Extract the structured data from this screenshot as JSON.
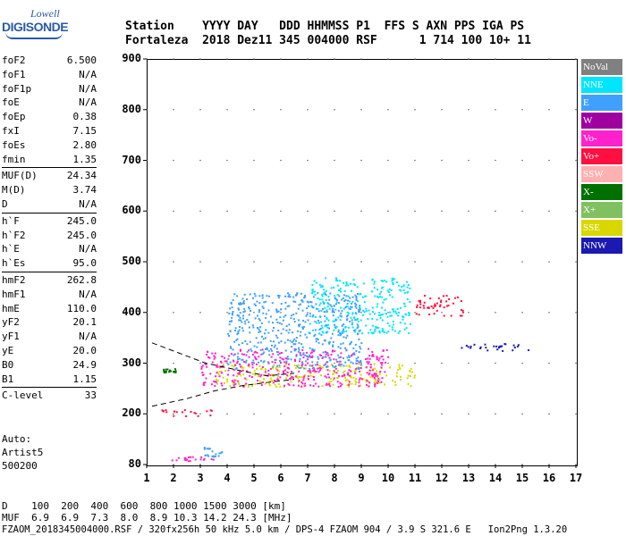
{
  "logo": {
    "line1": "Lowell",
    "line2": "DIGISONDE"
  },
  "header": {
    "row1": "Station    YYYY DAY   DDD HHMMSS P1  FFS S AXN PPS IGA PS",
    "row2": "Fortaleza  2018 Dez11 345 004000 RSF      1 714 100 10+ 11"
  },
  "params": [
    {
      "group": [
        {
          "k": "foF2",
          "v": "6.500"
        },
        {
          "k": "foF1",
          "v": "N/A"
        },
        {
          "k": "foF1p",
          "v": "N/A"
        },
        {
          "k": "foE",
          "v": "N/A"
        },
        {
          "k": "foEp",
          "v": "0.38"
        },
        {
          "k": "fxI",
          "v": "7.15"
        },
        {
          "k": "foEs",
          "v": "2.80"
        },
        {
          "k": "fmin",
          "v": "1.35"
        }
      ]
    },
    {
      "group": [
        {
          "k": "MUF(D)",
          "v": "24.34"
        },
        {
          "k": "M(D)",
          "v": "3.74"
        },
        {
          "k": "D",
          "v": "N/A"
        }
      ]
    },
    {
      "group": [
        {
          "k": "h`F",
          "v": "245.0"
        },
        {
          "k": "h`F2",
          "v": "245.0"
        },
        {
          "k": "h`E",
          "v": "N/A"
        },
        {
          "k": "h`Es",
          "v": "95.0"
        }
      ]
    },
    {
      "group": [
        {
          "k": "hmF2",
          "v": "262.8"
        },
        {
          "k": "hmF1",
          "v": "N/A"
        },
        {
          "k": "hmE",
          "v": "110.0"
        },
        {
          "k": "yF2",
          "v": "20.1"
        },
        {
          "k": "yF1",
          "v": "N/A"
        },
        {
          "k": "yE",
          "v": "20.0"
        },
        {
          "k": "B0",
          "v": "24.9"
        },
        {
          "k": "B1",
          "v": "1.15"
        }
      ]
    },
    {
      "group": [
        {
          "k": "C-level",
          "v": "33"
        }
      ]
    }
  ],
  "auto": {
    "l1": "Auto:",
    "l2": "Artist5",
    "l3": "500200"
  },
  "legend": [
    {
      "label": "NoVal",
      "color": "#808080"
    },
    {
      "label": "NNE",
      "color": "#00e5ff"
    },
    {
      "label": "E",
      "color": "#3fa0ff"
    },
    {
      "label": "W",
      "color": "#a000a0"
    },
    {
      "label": "Vo-",
      "color": "#ff22cc"
    },
    {
      "label": "Vo+",
      "color": "#ff1040"
    },
    {
      "label": "SSW",
      "color": "#ffb0b0"
    },
    {
      "label": "X-",
      "color": "#007000"
    },
    {
      "label": "X+",
      "color": "#80c060"
    },
    {
      "label": "SSE",
      "color": "#d8d800"
    },
    {
      "label": "NNW",
      "color": "#1a1ab0"
    }
  ],
  "chart_data": {
    "type": "scatter",
    "xlim": [
      1,
      17
    ],
    "ylim": [
      80,
      900
    ],
    "x_ticks": [
      "1",
      "2",
      "3",
      "4",
      "5",
      "6",
      "7",
      "8",
      "9",
      "10",
      "11",
      "12",
      "13",
      "14",
      "15",
      "16",
      "17"
    ],
    "y_ticks": [
      "80",
      "200",
      "300",
      "400",
      "500",
      "600",
      "700",
      "800",
      "900"
    ],
    "y_tick_values": [
      80,
      200,
      300,
      400,
      500,
      600,
      700,
      800,
      900
    ],
    "clusters": [
      {
        "class": "SSE",
        "x": [
          3.5,
          11.0
        ],
        "y": [
          255,
          300
        ]
      },
      {
        "class": "Vo-",
        "x": [
          3.0,
          10.0
        ],
        "y": [
          255,
          330
        ]
      },
      {
        "class": "NNE",
        "x": [
          7.0,
          10.8
        ],
        "y": [
          360,
          470
        ]
      },
      {
        "class": "E",
        "x": [
          4.0,
          9.0
        ],
        "y": [
          290,
          440
        ]
      },
      {
        "class": "NNW",
        "x": [
          12.5,
          15.2
        ],
        "y": [
          325,
          340
        ]
      },
      {
        "class": "Vo+",
        "x": [
          11.0,
          12.8
        ],
        "y": [
          395,
          435
        ]
      },
      {
        "class": "E",
        "x": [
          3.0,
          3.8
        ],
        "y": [
          100,
          125
        ]
      },
      {
        "class": "Vo-",
        "x": [
          1.5,
          3.5
        ],
        "y": [
          90,
          100
        ]
      },
      {
        "class": "Vo+",
        "x": [
          1.5,
          3.5
        ],
        "y": [
          195,
          210
        ]
      },
      {
        "class": "X-",
        "x": [
          1.6,
          2.1
        ],
        "y": [
          283,
          290
        ]
      }
    ]
  },
  "footer": {
    "d_row": "D    100  200  400  600  800 1000 1500 3000 [km]",
    "muf_row": "MUF  6.9  6.9  7.3  8.0  8.9 10.3 14.2 24.3 [MHz]",
    "info": "FZAOM_2018345004000.RSF / 320fx256h 50 kHz 5.0 km / DPS-4 FZAOM 904 / 3.9 S 321.6 E   Ion2Png 1.3.20"
  }
}
